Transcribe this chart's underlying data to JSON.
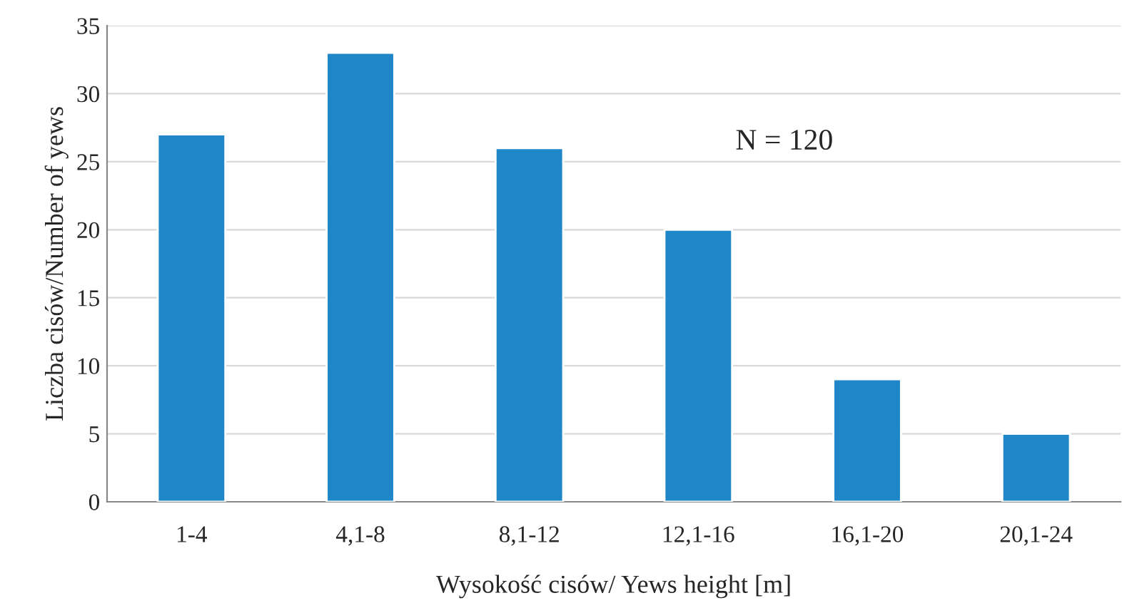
{
  "chart_data": {
    "type": "bar",
    "categories": [
      "1-4",
      "4,1-8",
      "8,1-12",
      "12,1-16",
      "16,1-20",
      "20,1-24"
    ],
    "values": [
      27,
      33,
      26,
      20,
      9,
      5
    ],
    "color": "#1f87c7",
    "xlabel": "Wysokość cisów/ Yews height [m]",
    "ylabel": "Liczba cisów/Number of yews",
    "ylim": [
      0,
      35
    ],
    "yticks": [
      0,
      5,
      10,
      15,
      20,
      25,
      30,
      35
    ],
    "grid": "y",
    "legend": false,
    "annotations": [
      "N = 120"
    ]
  }
}
